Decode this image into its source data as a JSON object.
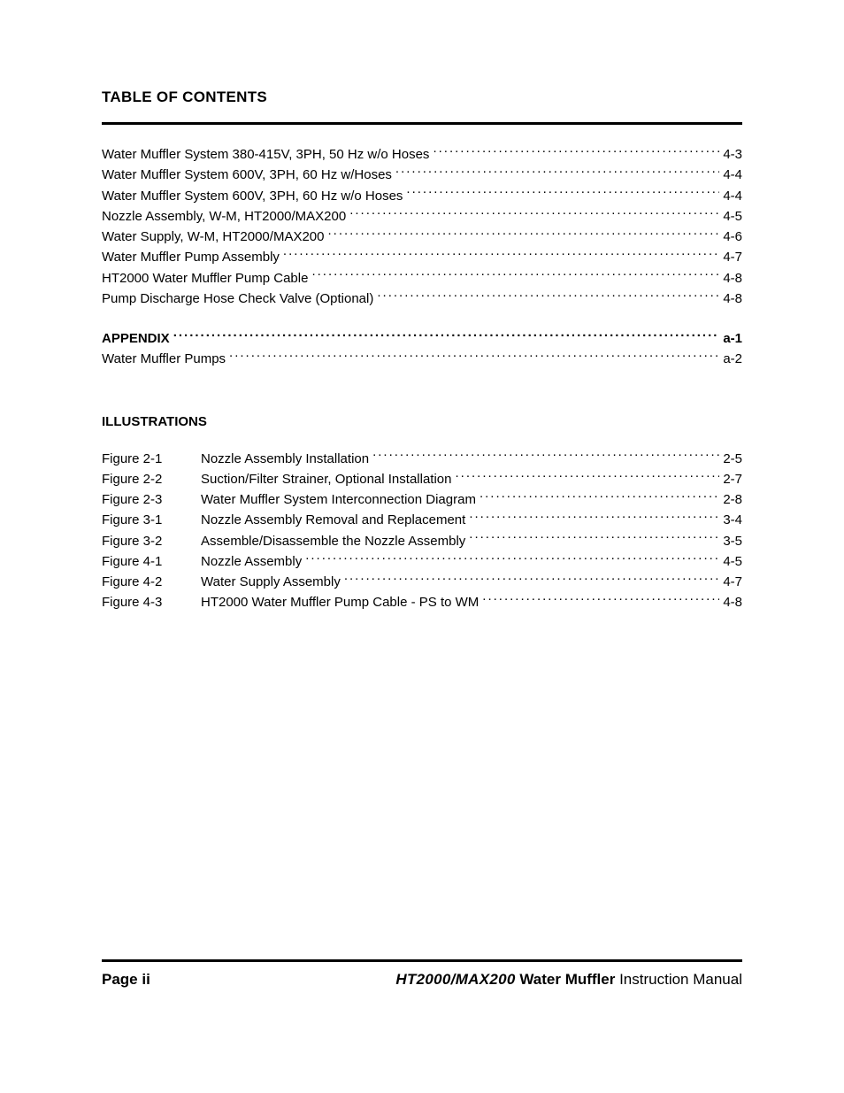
{
  "heading": "TABLE OF CONTENTS",
  "toc_group1": [
    {
      "label": "Water Muffler System 380-415V, 3PH, 50 Hz w/o Hoses",
      "page": "4-3"
    },
    {
      "label": "Water Muffler System 600V, 3PH, 60 Hz w/Hoses",
      "page": "4-4"
    },
    {
      "label": "Water Muffler System 600V, 3PH, 60 Hz w/o Hoses",
      "page": "4-4"
    },
    {
      "label": "Nozzle Assembly, W-M, HT2000/MAX200",
      "page": "4-5"
    },
    {
      "label": "Water Supply, W-M, HT2000/MAX200",
      "page": "4-6"
    },
    {
      "label": "Water Muffler Pump Assembly",
      "page": "4-7"
    },
    {
      "label": "HT2000 Water Muffler Pump Cable",
      "page": "4-8"
    },
    {
      "label": "Pump Discharge Hose Check Valve (Optional)",
      "page": "4-8"
    }
  ],
  "appendix": {
    "label": "APPENDIX",
    "page": "a-1"
  },
  "appendix_items": [
    {
      "label": "Water Muffler Pumps",
      "page": "a-2"
    }
  ],
  "illus_heading": "ILLUSTRATIONS",
  "illustrations": [
    {
      "fig": "Figure 2-1",
      "label": "Nozzle Assembly Installation",
      "page": "2-5"
    },
    {
      "fig": "Figure 2-2",
      "label": "Suction/Filter Strainer, Optional Installation",
      "page": "2-7"
    },
    {
      "fig": "Figure 2-3",
      "label": "Water Muffler System Interconnection Diagram",
      "page": "2-8"
    },
    {
      "fig": "Figure 3-1",
      "label": "Nozzle Assembly Removal and Replacement",
      "page": "3-4"
    },
    {
      "fig": "Figure 3-2",
      "label": "Assemble/Disassemble the Nozzle Assembly",
      "page": "3-5"
    },
    {
      "fig": "Figure 4-1",
      "label": "Nozzle Assembly",
      "page": "4-5"
    },
    {
      "fig": "Figure 4-2",
      "label": "Water Supply Assembly",
      "page": "4-7"
    },
    {
      "fig": "Figure 4-3",
      "label": "HT2000 Water Muffler Pump Cable - PS to WM",
      "page": "4-8"
    }
  ],
  "footer": {
    "page_label": "Page ii",
    "model": "HT2000/MAX200",
    "product": " Water Muffler",
    "doc_type": " Instruction Manual"
  }
}
